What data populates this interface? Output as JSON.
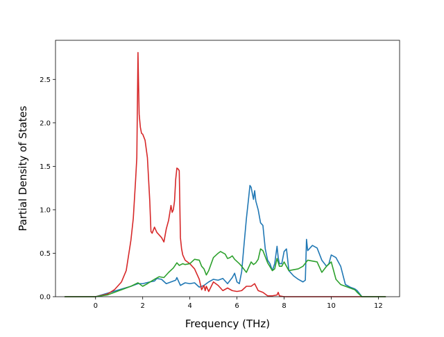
{
  "chart_data": {
    "type": "line",
    "title": "",
    "xlabel": "Frequency (THz)",
    "ylabel": "Partial Density of States",
    "xlim": [
      -1.7,
      12.9
    ],
    "ylim": [
      0.0,
      2.95
    ],
    "xticks": [
      0,
      2,
      4,
      6,
      8,
      10,
      12
    ],
    "yticks": [
      0.0,
      0.5,
      1.0,
      1.5,
      2.0,
      2.5
    ],
    "xtick_labels": [
      "0",
      "2",
      "4",
      "6",
      "8",
      "10",
      "12"
    ],
    "ytick_labels": [
      "0.0",
      "0.5",
      "1.0",
      "1.5",
      "2.0",
      "2.5"
    ],
    "grid": false,
    "legend": "none",
    "series": [
      {
        "color": "#1f77b4",
        "x": [
          -1.3,
          0.0,
          0.5,
          1.0,
          1.5,
          1.8,
          2.0,
          2.3,
          2.5,
          2.6,
          2.8,
          3.0,
          3.2,
          3.4,
          3.45,
          3.6,
          3.8,
          4.0,
          4.2,
          4.4,
          4.6,
          4.8,
          5.0,
          5.2,
          5.4,
          5.6,
          5.8,
          5.9,
          6.0,
          6.1,
          6.2,
          6.3,
          6.4,
          6.5,
          6.55,
          6.6,
          6.7,
          6.75,
          6.8,
          6.9,
          7.0,
          7.1,
          7.2,
          7.3,
          7.4,
          7.5,
          7.6,
          7.7,
          7.75,
          7.8,
          7.9,
          8.0,
          8.1,
          8.15,
          8.2,
          8.4,
          8.6,
          8.8,
          8.9,
          8.95,
          9.0,
          9.2,
          9.4,
          9.6,
          9.8,
          9.9,
          10.0,
          10.2,
          10.4,
          10.6,
          10.8,
          11.0,
          11.1,
          11.3,
          12.3
        ],
        "y": [
          0.0,
          0.0,
          0.04,
          0.08,
          0.12,
          0.15,
          0.15,
          0.17,
          0.18,
          0.21,
          0.2,
          0.15,
          0.17,
          0.19,
          0.22,
          0.13,
          0.16,
          0.15,
          0.16,
          0.11,
          0.13,
          0.17,
          0.2,
          0.19,
          0.21,
          0.15,
          0.22,
          0.27,
          0.17,
          0.15,
          0.29,
          0.6,
          0.9,
          1.15,
          1.28,
          1.26,
          1.12,
          1.22,
          1.1,
          1.0,
          0.85,
          0.82,
          0.55,
          0.42,
          0.38,
          0.3,
          0.38,
          0.58,
          0.45,
          0.38,
          0.38,
          0.52,
          0.55,
          0.43,
          0.3,
          0.24,
          0.2,
          0.17,
          0.19,
          0.66,
          0.53,
          0.59,
          0.56,
          0.42,
          0.35,
          0.38,
          0.48,
          0.45,
          0.35,
          0.14,
          0.11,
          0.09,
          0.07,
          0.0,
          0.0
        ]
      },
      {
        "color": "#d62728",
        "x": [
          -1.3,
          0.0,
          0.5,
          0.8,
          1.1,
          1.3,
          1.5,
          1.6,
          1.7,
          1.75,
          1.8,
          1.82,
          1.85,
          1.9,
          1.95,
          2.0,
          2.1,
          2.2,
          2.3,
          2.35,
          2.4,
          2.5,
          2.6,
          2.8,
          2.9,
          3.0,
          3.1,
          3.2,
          3.25,
          3.3,
          3.35,
          3.4,
          3.45,
          3.5,
          3.55,
          3.6,
          3.65,
          3.7,
          3.8,
          4.0,
          4.2,
          4.4,
          4.5,
          4.6,
          4.65,
          4.7,
          4.8,
          5.0,
          5.2,
          5.4,
          5.6,
          5.8,
          6.0,
          6.2,
          6.4,
          6.6,
          6.75,
          6.9,
          7.1,
          7.3,
          7.5,
          7.7,
          7.75,
          7.8,
          8.0,
          8.5,
          9.0,
          10.0,
          11.0,
          12.3
        ],
        "y": [
          0.0,
          0.0,
          0.03,
          0.08,
          0.17,
          0.3,
          0.65,
          0.9,
          1.35,
          1.6,
          2.81,
          2.5,
          2.1,
          1.95,
          1.88,
          1.87,
          1.8,
          1.6,
          1.1,
          0.75,
          0.73,
          0.8,
          0.74,
          0.68,
          0.63,
          0.78,
          0.88,
          1.05,
          0.97,
          1.0,
          1.1,
          1.35,
          1.48,
          1.47,
          1.45,
          0.68,
          0.55,
          0.48,
          0.42,
          0.38,
          0.32,
          0.2,
          0.08,
          0.13,
          0.07,
          0.12,
          0.06,
          0.17,
          0.13,
          0.07,
          0.1,
          0.07,
          0.06,
          0.07,
          0.12,
          0.12,
          0.15,
          0.07,
          0.05,
          0.01,
          0.01,
          0.02,
          0.05,
          0.01,
          0.0,
          0.0,
          0.0,
          0.0,
          0.0,
          0.0
        ]
      },
      {
        "color": "#2ca02c",
        "x": [
          -1.3,
          0.0,
          0.5,
          1.0,
          1.5,
          1.8,
          2.0,
          2.2,
          2.5,
          2.7,
          2.9,
          3.1,
          3.3,
          3.45,
          3.55,
          3.7,
          3.8,
          4.0,
          4.2,
          4.4,
          4.5,
          4.6,
          4.7,
          4.8,
          5.0,
          5.2,
          5.3,
          5.5,
          5.6,
          5.7,
          5.8,
          5.9,
          6.1,
          6.2,
          6.4,
          6.6,
          6.7,
          6.8,
          6.9,
          7.0,
          7.1,
          7.3,
          7.5,
          7.6,
          7.7,
          7.8,
          7.9,
          8.0,
          8.2,
          8.6,
          8.8,
          9.0,
          9.2,
          9.4,
          9.6,
          9.8,
          10.0,
          10.2,
          10.4,
          10.6,
          10.8,
          11.0,
          11.1,
          11.3,
          12.3
        ],
        "y": [
          0.0,
          0.0,
          0.02,
          0.07,
          0.12,
          0.16,
          0.12,
          0.15,
          0.2,
          0.23,
          0.22,
          0.28,
          0.33,
          0.39,
          0.36,
          0.38,
          0.37,
          0.38,
          0.43,
          0.42,
          0.35,
          0.32,
          0.25,
          0.3,
          0.45,
          0.5,
          0.52,
          0.49,
          0.44,
          0.45,
          0.47,
          0.43,
          0.38,
          0.35,
          0.28,
          0.4,
          0.37,
          0.39,
          0.43,
          0.55,
          0.53,
          0.39,
          0.3,
          0.32,
          0.44,
          0.35,
          0.35,
          0.4,
          0.3,
          0.32,
          0.35,
          0.42,
          0.41,
          0.4,
          0.28,
          0.35,
          0.4,
          0.2,
          0.14,
          0.12,
          0.1,
          0.08,
          0.05,
          0.0,
          0.0
        ]
      }
    ]
  }
}
